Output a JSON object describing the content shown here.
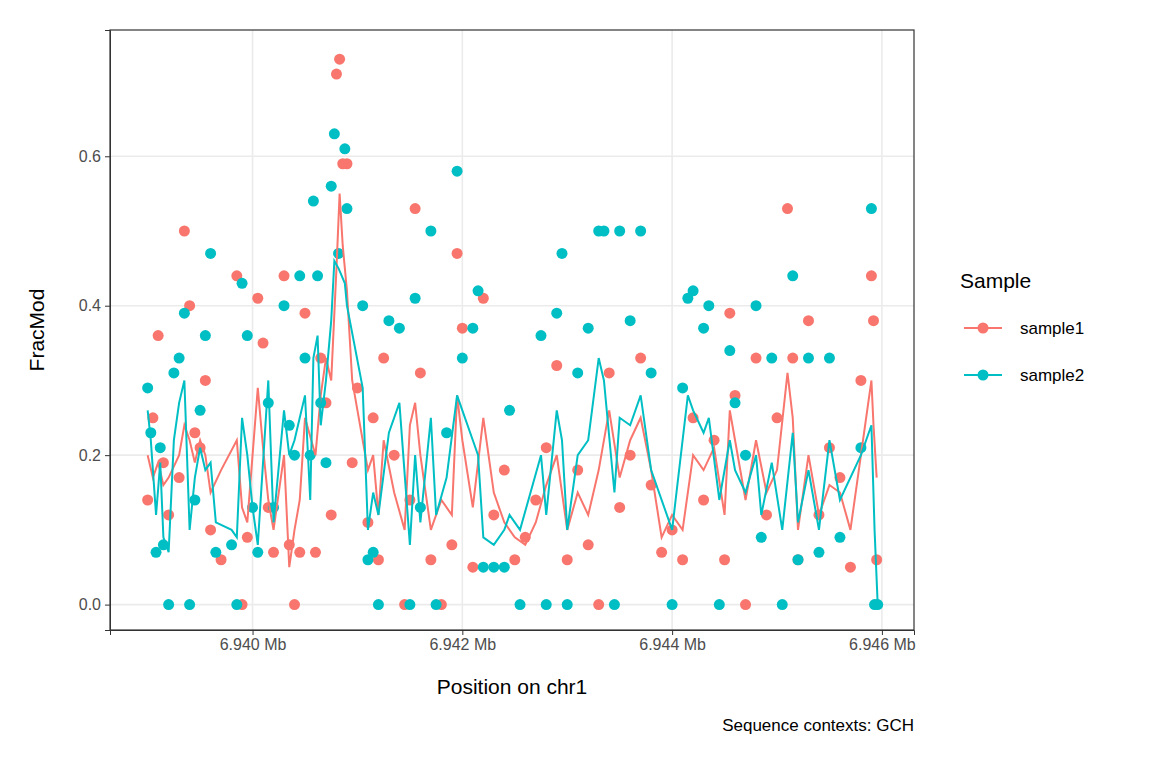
{
  "chart_data": {
    "type": "scatter",
    "x_label": "Position on chr1",
    "y_label": "FracMod",
    "caption": "Sequence contexts: GCH",
    "legend_title": "Sample",
    "legend": "right",
    "grid": true,
    "marker": "circle",
    "line_style": "solid",
    "xlim": [
      6938641,
      6946306
    ],
    "xticks": [
      {
        "value": 6940000,
        "label": "6.940 Mb"
      },
      {
        "value": 6942000,
        "label": "6.942 Mb"
      },
      {
        "value": 6944000,
        "label": "6.944 Mb"
      },
      {
        "value": 6946000,
        "label": "6.946 Mb"
      }
    ],
    "ylim": [
      -0.034,
      0.769
    ],
    "yticks": [
      {
        "value": 0,
        "label": "0.0"
      },
      {
        "value": 0.2,
        "label": "0.2"
      },
      {
        "value": 0.4,
        "label": "0.4"
      },
      {
        "value": 0.6,
        "label": "0.6"
      }
    ],
    "series": [
      {
        "name": "sample1",
        "color": "#F8766D",
        "x": [
          6939000,
          6939050,
          6939100,
          6939150,
          6939200,
          6939300,
          6939350,
          6939400,
          6939450,
          6939500,
          6939550,
          6939600,
          6939700,
          6939850,
          6939900,
          6939950,
          6940050,
          6940100,
          6940150,
          6940200,
          6940300,
          6940350,
          6940400,
          6940450,
          6940500,
          6940600,
          6940650,
          6940700,
          6940750,
          6940800,
          6940830,
          6940860,
          6940900,
          6940950,
          6941000,
          6941100,
          6941150,
          6941200,
          6941250,
          6941350,
          6941450,
          6941500,
          6941550,
          6941600,
          6941700,
          6941800,
          6941900,
          6941950,
          6942000,
          6942100,
          6942200,
          6942300,
          6942400,
          6942500,
          6942600,
          6942700,
          6942800,
          6942900,
          6943000,
          6943100,
          6943200,
          6943300,
          6943400,
          6943500,
          6943600,
          6943700,
          6943800,
          6943900,
          6944000,
          6944100,
          6944200,
          6944300,
          6944400,
          6944500,
          6944550,
          6944600,
          6944700,
          6944800,
          6944900,
          6945000,
          6945100,
          6945150,
          6945200,
          6945300,
          6945400,
          6945500,
          6945600,
          6945700,
          6945800,
          6945900,
          6945920,
          6945950
        ],
        "values": [
          0.14,
          0.25,
          0.36,
          0.19,
          0.12,
          0.17,
          0.5,
          0.4,
          0.23,
          0.21,
          0.3,
          0.1,
          0.06,
          0.44,
          0.0,
          0.09,
          0.41,
          0.35,
          0.13,
          0.07,
          0.44,
          0.08,
          0.0,
          0.07,
          0.39,
          0.07,
          0.33,
          0.27,
          0.12,
          0.71,
          0.73,
          0.59,
          0.59,
          0.19,
          0.29,
          0.11,
          0.25,
          0.06,
          0.33,
          0.2,
          0.0,
          0.14,
          0.53,
          0.31,
          0.06,
          0.0,
          0.08,
          0.47,
          0.37,
          0.05,
          0.41,
          0.12,
          0.18,
          0.06,
          0.09,
          0.14,
          0.21,
          0.32,
          0.06,
          0.18,
          0.08,
          0.0,
          0.31,
          0.13,
          0.2,
          0.33,
          0.16,
          0.07,
          0.1,
          0.06,
          0.25,
          0.14,
          0.22,
          0.06,
          0.39,
          0.28,
          0.0,
          0.33,
          0.12,
          0.25,
          0.53,
          0.33,
          0.06,
          0.38,
          0.12,
          0.21,
          0.17,
          0.05,
          0.3,
          0.44,
          0.38,
          0.06
        ],
        "line_values": [
          0.2,
          0.17,
          0.19,
          0.16,
          0.17,
          0.2,
          0.24,
          0.22,
          0.19,
          0.22,
          0.2,
          0.15,
          0.18,
          0.22,
          0.13,
          0.11,
          0.29,
          0.21,
          0.14,
          0.1,
          0.2,
          0.05,
          0.1,
          0.14,
          0.25,
          0.2,
          0.28,
          0.33,
          0.3,
          0.45,
          0.55,
          0.48,
          0.42,
          0.3,
          0.26,
          0.18,
          0.2,
          0.12,
          0.22,
          0.15,
          0.1,
          0.24,
          0.27,
          0.2,
          0.1,
          0.14,
          0.12,
          0.28,
          0.22,
          0.13,
          0.25,
          0.15,
          0.11,
          0.09,
          0.08,
          0.11,
          0.16,
          0.2,
          0.1,
          0.15,
          0.12,
          0.18,
          0.26,
          0.17,
          0.22,
          0.25,
          0.18,
          0.09,
          0.12,
          0.1,
          0.2,
          0.18,
          0.21,
          0.12,
          0.26,
          0.22,
          0.14,
          0.22,
          0.15,
          0.18,
          0.31,
          0.25,
          0.1,
          0.2,
          0.12,
          0.16,
          0.15,
          0.1,
          0.2,
          0.3,
          0.24,
          0.17
        ]
      },
      {
        "name": "sample2",
        "color": "#00BFC4",
        "x": [
          6939000,
          6939030,
          6939080,
          6939120,
          6939150,
          6939200,
          6939250,
          6939300,
          6939350,
          6939400,
          6939450,
          6939500,
          6939550,
          6939600,
          6939650,
          6939800,
          6939850,
          6939900,
          6939950,
          6940000,
          6940050,
          6940150,
          6940200,
          6940300,
          6940350,
          6940400,
          6940450,
          6940500,
          6940550,
          6940580,
          6940620,
          6940650,
          6940700,
          6940750,
          6940780,
          6940820,
          6940880,
          6940900,
          6941050,
          6941100,
          6941150,
          6941200,
          6941300,
          6941400,
          6941500,
          6941550,
          6941600,
          6941700,
          6941750,
          6941850,
          6941950,
          6942000,
          6942100,
          6942150,
          6942200,
          6942300,
          6942400,
          6942450,
          6942550,
          6942750,
          6942800,
          6942900,
          6942950,
          6943000,
          6943100,
          6943200,
          6943300,
          6943350,
          6943450,
          6943500,
          6943600,
          6943700,
          6943800,
          6944000,
          6944100,
          6944150,
          6944200,
          6944300,
          6944350,
          6944450,
          6944550,
          6944600,
          6944700,
          6944800,
          6944850,
          6944950,
          6945050,
          6945150,
          6945200,
          6945300,
          6945400,
          6945500,
          6945600,
          6945800,
          6945900,
          6945930,
          6945960
        ],
        "values": [
          0.29,
          0.23,
          0.07,
          0.21,
          0.08,
          0.0,
          0.31,
          0.33,
          0.39,
          0.0,
          0.14,
          0.26,
          0.36,
          0.47,
          0.07,
          0.08,
          0.0,
          0.43,
          0.36,
          0.13,
          0.07,
          0.27,
          0.13,
          0.4,
          0.24,
          0.2,
          0.44,
          0.33,
          0.2,
          0.54,
          0.44,
          0.27,
          0.19,
          0.56,
          0.63,
          0.47,
          0.61,
          0.53,
          0.4,
          0.06,
          0.07,
          0.0,
          0.38,
          0.37,
          0.0,
          0.41,
          0.13,
          0.5,
          0.0,
          0.23,
          0.58,
          0.33,
          0.37,
          0.42,
          0.05,
          0.05,
          0.05,
          0.26,
          0.0,
          0.36,
          0.0,
          0.39,
          0.47,
          0.0,
          0.31,
          0.37,
          0.5,
          0.5,
          0.0,
          0.5,
          0.38,
          0.5,
          0.31,
          0.0,
          0.29,
          0.41,
          0.42,
          0.37,
          0.4,
          0.0,
          0.34,
          0.27,
          0.2,
          0.4,
          0.09,
          0.33,
          0.0,
          0.44,
          0.06,
          0.33,
          0.07,
          0.33,
          0.09,
          0.21,
          0.53,
          0.0,
          0.0
        ],
        "line_values": [
          0.26,
          0.22,
          0.12,
          0.19,
          0.09,
          0.07,
          0.22,
          0.27,
          0.3,
          0.1,
          0.17,
          0.21,
          0.18,
          0.19,
          0.11,
          0.1,
          0.09,
          0.25,
          0.2,
          0.13,
          0.08,
          0.3,
          0.11,
          0.26,
          0.2,
          0.22,
          0.25,
          0.28,
          0.14,
          0.33,
          0.36,
          0.24,
          0.3,
          0.38,
          0.46,
          0.45,
          0.43,
          0.4,
          0.29,
          0.1,
          0.15,
          0.12,
          0.23,
          0.27,
          0.08,
          0.2,
          0.11,
          0.25,
          0.12,
          0.17,
          0.28,
          0.26,
          0.22,
          0.2,
          0.09,
          0.08,
          0.1,
          0.12,
          0.1,
          0.2,
          0.12,
          0.26,
          0.22,
          0.1,
          0.2,
          0.22,
          0.33,
          0.3,
          0.15,
          0.25,
          0.24,
          0.28,
          0.18,
          0.1,
          0.22,
          0.28,
          0.26,
          0.23,
          0.25,
          0.14,
          0.22,
          0.18,
          0.15,
          0.2,
          0.12,
          0.19,
          0.1,
          0.23,
          0.11,
          0.18,
          0.1,
          0.22,
          0.14,
          0.2,
          0.24,
          0.1,
          0.0
        ]
      }
    ]
  }
}
